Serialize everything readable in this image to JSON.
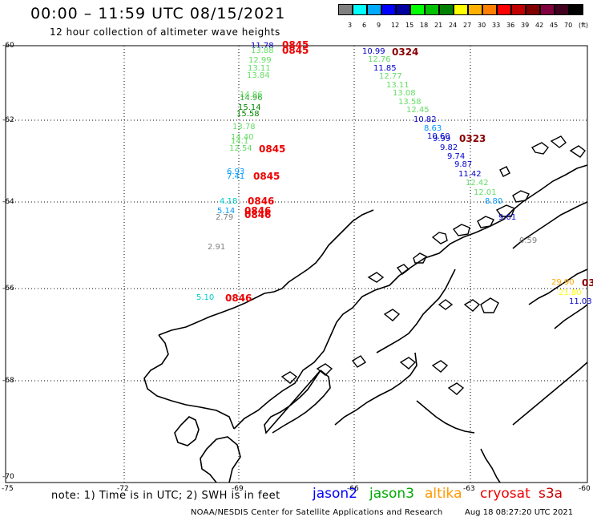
{
  "header": {
    "title": "00:00 – 11:59 UTC 08/15/2021",
    "subtitle": "12 hour collection of altimeter wave heights"
  },
  "colorbar": {
    "labels": [
      "3",
      "6",
      "9",
      "12",
      "15",
      "18",
      "21",
      "24",
      "27",
      "30",
      "33",
      "36",
      "39",
      "42",
      "45",
      "70",
      "(ft)"
    ],
    "colors": [
      "#808080",
      "#00ffff",
      "#00aaff",
      "#0000ff",
      "#0000a0",
      "#00ff00",
      "#00c000",
      "#008000",
      "#ffff00",
      "#ffb000",
      "#ff8000",
      "#ff0000",
      "#c00000",
      "#800000",
      "#800040",
      "#400020",
      "#000000"
    ]
  },
  "axes": {
    "lat_labels": [
      "-60",
      "-62",
      "-64",
      "-66",
      "-68",
      "-70"
    ],
    "lon_labels": [
      "-75",
      "-72",
      "-69",
      "-66",
      "-63",
      "-60"
    ]
  },
  "observations": [
    {
      "text": "11.78",
      "color": "#0000cc"
    },
    {
      "text": "13.88",
      "color": "#66dd66"
    },
    {
      "text": "12.99",
      "color": "#66dd66"
    },
    {
      "text": "13.11",
      "color": "#66dd66"
    },
    {
      "text": "13.84",
      "color": "#66dd66"
    },
    {
      "text": "14.86",
      "color": "#66dd66"
    },
    {
      "text": "14.96",
      "color": "#33aa33"
    },
    {
      "text": "15.14",
      "color": "#008800"
    },
    {
      "text": "15.58",
      "color": "#008800"
    },
    {
      "text": "13.78",
      "color": "#66dd66"
    },
    {
      "text": "14.40",
      "color": "#66dd66"
    },
    {
      "text": "14.1",
      "color": "#66dd66"
    },
    {
      "text": "12.54",
      "color": "#66dd66"
    },
    {
      "text": "6.93",
      "color": "#0099ff"
    },
    {
      "text": "7.41",
      "color": "#0099ff"
    },
    {
      "text": "4.18",
      "color": "#00cccc"
    },
    {
      "text": "5.14",
      "color": "#0099ff"
    },
    {
      "text": "2.79",
      "color": "#808080"
    },
    {
      "text": "2.91",
      "color": "#808080"
    },
    {
      "text": "5.10",
      "color": "#00cccc"
    },
    {
      "text": "10.99",
      "color": "#0000cc"
    },
    {
      "text": "12.76",
      "color": "#66dd66"
    },
    {
      "text": "11.85",
      "color": "#0000cc"
    },
    {
      "text": "12.77",
      "color": "#66dd66"
    },
    {
      "text": "13.11",
      "color": "#66dd66"
    },
    {
      "text": "13.08",
      "color": "#66dd66"
    },
    {
      "text": "13.58",
      "color": "#66dd66"
    },
    {
      "text": "12.45",
      "color": "#66dd66"
    },
    {
      "text": "10.82",
      "color": "#0000cc"
    },
    {
      "text": "8.63",
      "color": "#0099ff"
    },
    {
      "text": "10.60",
      "color": "#0000cc"
    },
    {
      "text": "9.99",
      "color": "#0000cc"
    },
    {
      "text": "9.82",
      "color": "#0000cc"
    },
    {
      "text": "9.74",
      "color": "#0000cc"
    },
    {
      "text": "9.87",
      "color": "#0000cc"
    },
    {
      "text": "11.42",
      "color": "#0000cc"
    },
    {
      "text": "12.42",
      "color": "#66dd66"
    },
    {
      "text": "12.01",
      "color": "#66dd66"
    },
    {
      "text": "8.80",
      "color": "#0099ff"
    },
    {
      "text": "9.01",
      "color": "#0000cc"
    },
    {
      "text": "0.59",
      "color": "#808080"
    },
    {
      "text": "29.90",
      "color": "#ffaa00"
    },
    {
      "text": "21.80",
      "color": "#ffff00"
    },
    {
      "text": "11.03",
      "color": "#0000cc"
    }
  ],
  "times": [
    {
      "text": "0845",
      "color": "#ee0000"
    },
    {
      "text": "0845",
      "color": "#ee0000"
    },
    {
      "text": "0845",
      "color": "#ee0000"
    },
    {
      "text": "0845",
      "color": "#ee0000"
    },
    {
      "text": "0846",
      "color": "#ee0000"
    },
    {
      "text": "0846",
      "color": "#ee0000"
    },
    {
      "text": "0846",
      "color": "#ee0000"
    },
    {
      "text": "0846",
      "color": "#ee0000"
    },
    {
      "text": "0324",
      "color": "#880000"
    },
    {
      "text": "0323",
      "color": "#880000"
    },
    {
      "text": "03",
      "color": "#880000"
    }
  ],
  "footer": {
    "note": "note: 1) Time is in UTC; 2) SWH is in feet",
    "legend": [
      {
        "text": "jason2",
        "color": "#0000ff"
      },
      {
        "text": "jason3",
        "color": "#00aa00"
      },
      {
        "text": "altika",
        "color": "#ff9900"
      },
      {
        "text": "cryosat",
        "color": "#ee0000"
      },
      {
        "text": "s3a",
        "color": "#cc0000"
      }
    ],
    "credit": "NOAA/NESDIS Center for Satellite Applications and Research",
    "date": "Aug 18 08:27:20 UTC 2021"
  }
}
